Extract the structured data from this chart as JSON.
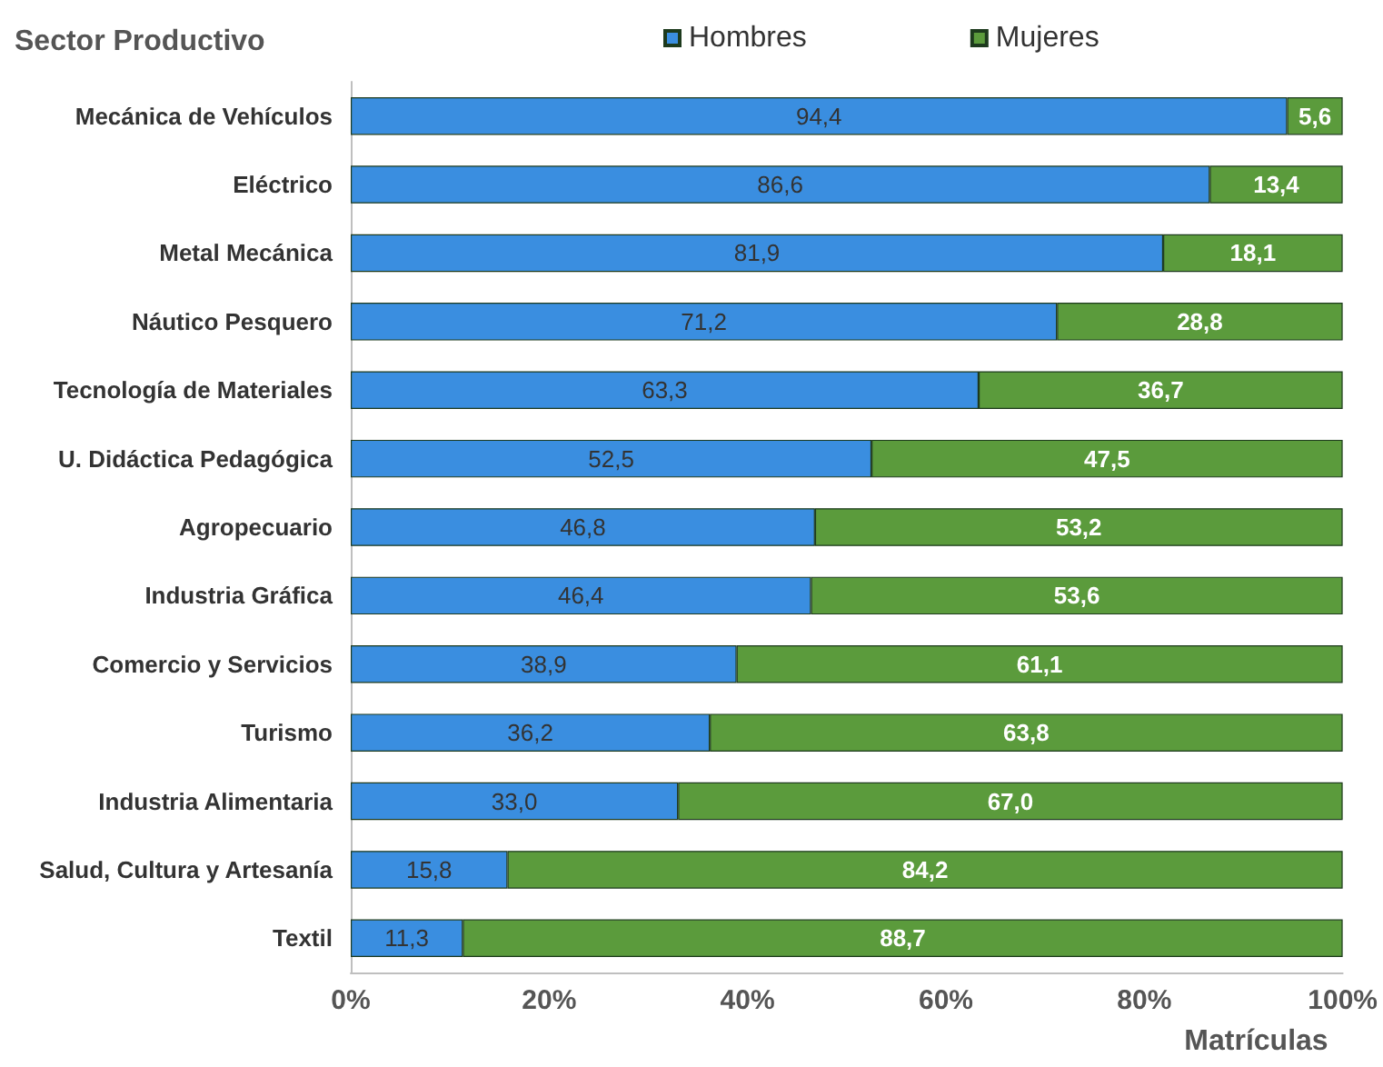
{
  "chart_data": {
    "type": "bar",
    "orientation": "horizontal",
    "stacked": true,
    "ylabel": "Sector Productivo",
    "xlabel": "Matrículas",
    "legend": "top",
    "grid": false,
    "categories": [
      "Mecánica de Vehículos",
      "Eléctrico",
      "Metal Mecánica",
      "Náutico Pesquero",
      "Tecnología de Materiales",
      "U. Didáctica Pedagógica",
      "Agropecuario",
      "Industria Gráfica",
      "Comercio y Servicios",
      "Turismo",
      "Industria Alimentaria",
      "Salud, Cultura y Artesanía",
      "Textil"
    ],
    "xlim": [
      0,
      100
    ],
    "xticks": [
      {
        "value": 0,
        "label": "0%"
      },
      {
        "value": 20,
        "label": "20%"
      },
      {
        "value": 40,
        "label": "40%"
      },
      {
        "value": 60,
        "label": "60%"
      },
      {
        "value": 80,
        "label": "80%"
      },
      {
        "value": 100,
        "label": "100%"
      }
    ],
    "series": [
      {
        "name": "Hombres",
        "color": "#3a8ee0",
        "values": [
          94.4,
          86.6,
          81.9,
          71.2,
          63.3,
          52.5,
          46.8,
          46.4,
          38.9,
          36.2,
          33.0,
          15.8,
          11.3
        ],
        "value_labels": [
          "94,4",
          "86,6",
          "81,9",
          "71,2",
          "63,3",
          "52,5",
          "46,8",
          "46,4",
          "38,9",
          "36,2",
          "33,0",
          "15,8",
          "11,3"
        ]
      },
      {
        "name": "Mujeres",
        "color": "#5b9b3c",
        "values": [
          5.6,
          13.4,
          18.1,
          28.8,
          36.7,
          47.5,
          53.2,
          53.6,
          61.1,
          63.8,
          67.0,
          84.2,
          88.7
        ],
        "value_labels": [
          "5,6",
          "13,4",
          "18,1",
          "28,8",
          "36,7",
          "47,5",
          "53,2",
          "53,6",
          "61,1",
          "63,8",
          "67,0",
          "84,2",
          "88,7"
        ]
      }
    ]
  }
}
